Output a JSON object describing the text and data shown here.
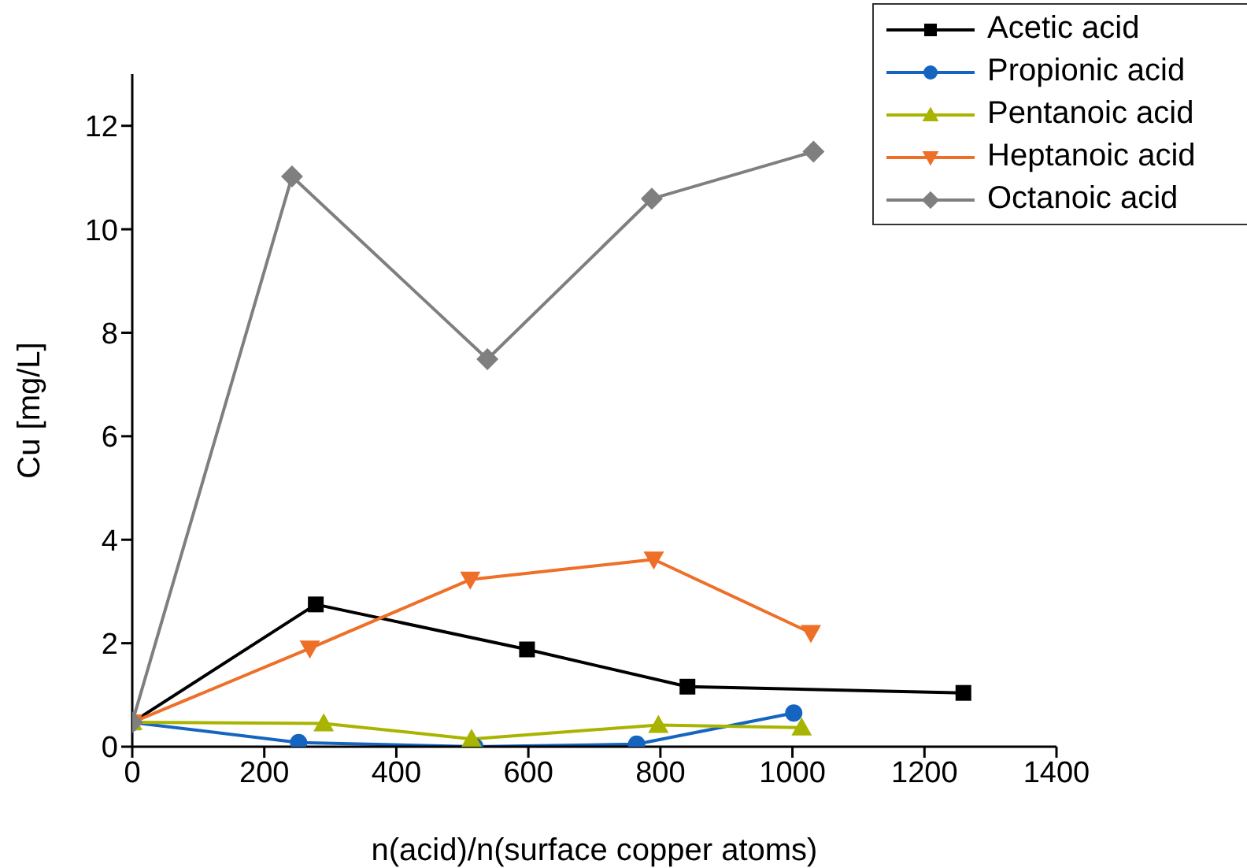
{
  "chart_data": {
    "type": "line",
    "xlabel": "n(acid)/n(surface copper atoms)",
    "ylabel": "Cu [mg/L]",
    "xlim": [
      0,
      1400
    ],
    "xticks": [
      0,
      200,
      400,
      600,
      800,
      1000,
      1200,
      1400
    ],
    "ylim": [
      0,
      13
    ],
    "yticks": [
      0,
      2,
      4,
      6,
      8,
      10,
      12
    ],
    "grid": false,
    "legend": "top right",
    "line_style": "solid",
    "series": [
      {
        "name": "Acetic acid",
        "color": "#000000",
        "marker": "square",
        "x": [
          0,
          278,
          598,
          841,
          1259
        ],
        "values": [
          0.47,
          2.75,
          1.88,
          1.16,
          1.04
        ]
      },
      {
        "name": "Propionic acid",
        "color": "#1565c0",
        "marker": "circle",
        "x": [
          0,
          252,
          519,
          764,
          1002
        ],
        "values": [
          0.47,
          0.08,
          0.0,
          0.05,
          0.65
        ]
      },
      {
        "name": "Pentanoic acid",
        "color": "#a8b400",
        "marker": "triangle",
        "x": [
          0,
          290,
          514,
          797,
          1014
        ],
        "values": [
          0.47,
          0.45,
          0.15,
          0.42,
          0.37
        ]
      },
      {
        "name": "Heptanoic acid",
        "color": "#ee7028",
        "marker": "triangle-down",
        "x": [
          0,
          269,
          512,
          790,
          1028
        ],
        "values": [
          0.47,
          1.9,
          3.23,
          3.62,
          2.2
        ]
      },
      {
        "name": "Octanoic acid",
        "color": "#7f7f7f",
        "marker": "diamond",
        "x": [
          0,
          242,
          538,
          787,
          1032
        ],
        "values": [
          0.47,
          11.02,
          7.49,
          10.59,
          11.5
        ]
      }
    ]
  }
}
